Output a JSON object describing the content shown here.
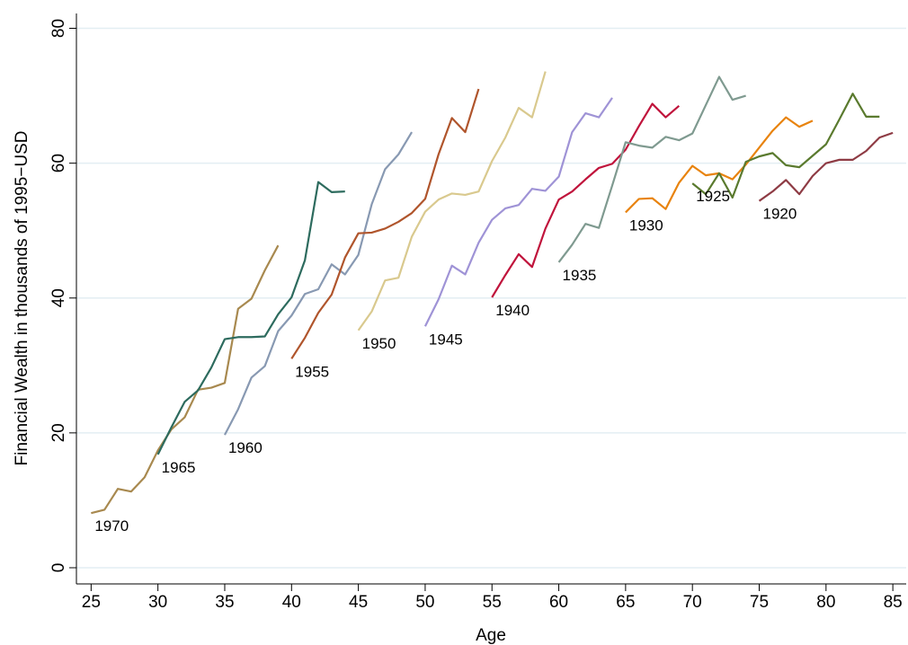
{
  "chart_data": {
    "type": "line",
    "x_label": "Age",
    "y_label": "Financial Wealth in thousands of 1995−USD",
    "xlim": [
      23.9,
      86
    ],
    "xticks": [
      25,
      30,
      35,
      40,
      45,
      50,
      55,
      60,
      65,
      70,
      75,
      80,
      85
    ],
    "ylim": [
      -2.4,
      82.2
    ],
    "yticks": [
      0,
      20,
      40,
      60,
      80
    ],
    "grid": true,
    "series": [
      {
        "name": "1970",
        "color": "#a8894f",
        "x": [
          25,
          26,
          27,
          28,
          29,
          30,
          31,
          32,
          33,
          34,
          35,
          36,
          37,
          38,
          39
        ],
        "values": [
          8.1,
          8.6,
          11.7,
          11.3,
          13.4,
          17.4,
          20.5,
          22.3,
          26.4,
          26.7,
          27.4,
          38.4,
          39.9,
          44.1,
          47.8
        ]
      },
      {
        "name": "1965",
        "color": "#2d6b5e",
        "x": [
          30,
          31,
          32,
          33,
          34,
          35,
          36,
          37,
          38,
          39,
          40,
          41,
          42,
          43,
          44
        ],
        "values": [
          16.8,
          20.8,
          24.6,
          26.3,
          29.7,
          33.9,
          34.2,
          34.2,
          34.3,
          37.6,
          40.1,
          45.6,
          57.2,
          55.7,
          55.8
        ]
      },
      {
        "name": "1960",
        "color": "#8899b2",
        "x": [
          35,
          36,
          37,
          38,
          39,
          40,
          41,
          42,
          43,
          44,
          45,
          46,
          47,
          48,
          49
        ],
        "values": [
          19.7,
          23.5,
          28.2,
          29.9,
          35.1,
          37.4,
          40.6,
          41.3,
          45.0,
          43.5,
          46.4,
          53.9,
          59.1,
          61.3,
          64.6
        ]
      },
      {
        "name": "1955",
        "color": "#b0552c",
        "x": [
          40,
          41,
          42,
          43,
          44,
          45,
          46,
          47,
          48,
          49,
          50,
          51,
          52,
          53,
          54
        ],
        "values": [
          31.0,
          34.1,
          37.8,
          40.5,
          46.0,
          49.6,
          49.7,
          50.3,
          51.3,
          52.6,
          54.7,
          61.3,
          66.7,
          64.6,
          71.0
        ]
      },
      {
        "name": "1950",
        "color": "#d9c98e",
        "x": [
          45,
          46,
          47,
          48,
          49,
          50,
          51,
          52,
          53,
          54,
          55,
          56,
          57,
          58,
          59
        ],
        "values": [
          35.2,
          38.0,
          42.6,
          43.0,
          49.1,
          52.8,
          54.6,
          55.5,
          55.3,
          55.8,
          60.3,
          63.8,
          68.2,
          66.8,
          73.6
        ]
      },
      {
        "name": "1945",
        "color": "#9f93d6",
        "x": [
          50,
          51,
          52,
          53,
          54,
          55,
          56,
          57,
          58,
          59,
          60,
          61,
          62,
          63,
          64
        ],
        "values": [
          35.8,
          39.8,
          44.8,
          43.5,
          48.2,
          51.6,
          53.3,
          53.8,
          56.2,
          55.9,
          58.0,
          64.6,
          67.4,
          66.8,
          69.7
        ]
      },
      {
        "name": "1940",
        "color": "#c0143c",
        "x": [
          55,
          56,
          57,
          58,
          59,
          60,
          61,
          62,
          63,
          64,
          65,
          66,
          67,
          68,
          69
        ],
        "values": [
          40.1,
          43.4,
          46.5,
          44.6,
          50.3,
          54.6,
          55.8,
          57.6,
          59.3,
          59.9,
          62.0,
          65.5,
          68.8,
          66.8,
          68.5
        ]
      },
      {
        "name": "1935",
        "color": "#7f9a90",
        "x": [
          60,
          61,
          62,
          63,
          64,
          65,
          66,
          67,
          68,
          69,
          70,
          71,
          72,
          73,
          74
        ],
        "values": [
          45.3,
          47.9,
          51.0,
          50.4,
          56.7,
          63.1,
          62.6,
          62.3,
          63.9,
          63.4,
          64.4,
          68.6,
          72.8,
          69.4,
          70.0
        ]
      },
      {
        "name": "1930",
        "color": "#e8830e",
        "x": [
          65,
          66,
          67,
          68,
          69,
          70,
          71,
          72,
          73,
          74,
          75,
          76,
          77,
          78,
          79
        ],
        "values": [
          52.7,
          54.7,
          54.8,
          53.2,
          57.1,
          59.6,
          58.2,
          58.5,
          57.6,
          59.8,
          62.3,
          64.8,
          66.8,
          65.4,
          66.3
        ]
      },
      {
        "name": "1925",
        "color": "#5a7a2e",
        "x": [
          70,
          71,
          72,
          73,
          74,
          75,
          76,
          77,
          78,
          79,
          80,
          81,
          82,
          83,
          84
        ],
        "values": [
          57.0,
          55.4,
          58.5,
          54.9,
          60.2,
          61.0,
          61.5,
          59.7,
          59.4,
          61.1,
          62.8,
          66.5,
          70.3,
          66.9,
          66.9
        ]
      },
      {
        "name": "1920",
        "color": "#8e3b44",
        "x": [
          75,
          76,
          77,
          78,
          79,
          80,
          81,
          82,
          83,
          84,
          85
        ],
        "values": [
          54.4,
          55.8,
          57.5,
          55.4,
          58.1,
          60.0,
          60.5,
          60.5,
          61.8,
          63.8,
          64.5
        ]
      }
    ]
  }
}
